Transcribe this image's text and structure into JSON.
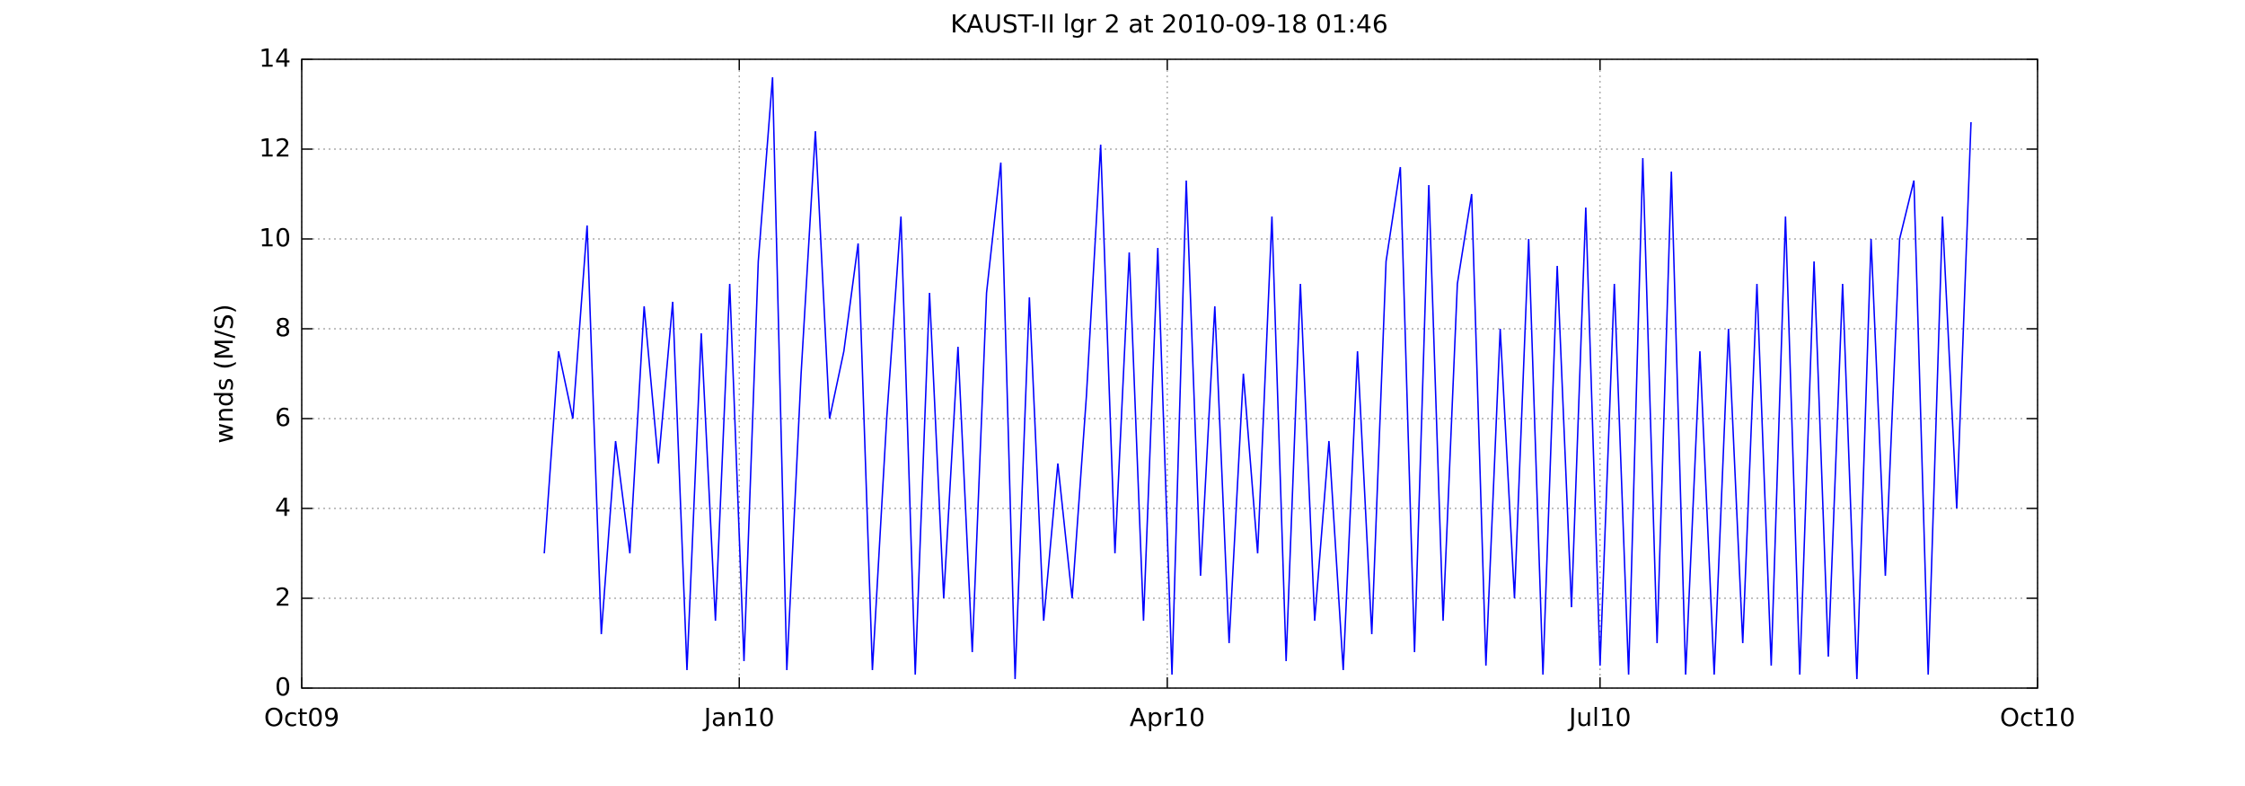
{
  "chart_data": {
    "type": "line",
    "title": "KAUST-II lgr 2 at 2010-09-18 01:46",
    "ylabel": "wnds (M/S)",
    "x": [
      51,
      54,
      57,
      60,
      63,
      66,
      69,
      72,
      75,
      78,
      81,
      84,
      87,
      90,
      93,
      96,
      99,
      102,
      105,
      108,
      111,
      114,
      117,
      120,
      123,
      126,
      129,
      132,
      135,
      138,
      141,
      144,
      147,
      150,
      153,
      156,
      159,
      162,
      165,
      168,
      171,
      174,
      177,
      180,
      183,
      186,
      189,
      192,
      195,
      198,
      201,
      204,
      207,
      210,
      213,
      216,
      219,
      222,
      225,
      228,
      231,
      234,
      237,
      240,
      243,
      246,
      249,
      252,
      255,
      258,
      261,
      264,
      267,
      270,
      273,
      276,
      279,
      282,
      285,
      288,
      291,
      294,
      297,
      300,
      303,
      306,
      309,
      312,
      315,
      318,
      321,
      324,
      327,
      330,
      333,
      336,
      339,
      342,
      345,
      348,
      351
    ],
    "series": [
      {
        "name": "wnds",
        "color": "#0000ff",
        "values": [
          3.0,
          7.5,
          6.0,
          10.3,
          1.2,
          5.5,
          3.0,
          8.5,
          5.0,
          8.6,
          0.4,
          7.9,
          1.5,
          9.0,
          0.6,
          9.5,
          13.6,
          0.4,
          7.0,
          12.4,
          6.0,
          7.5,
          9.9,
          0.4,
          6.0,
          10.5,
          0.3,
          8.8,
          2.0,
          7.6,
          0.8,
          8.8,
          11.7,
          0.2,
          8.7,
          1.5,
          5.0,
          2.0,
          6.5,
          12.1,
          3.0,
          9.7,
          1.5,
          9.8,
          0.3,
          11.3,
          2.5,
          8.5,
          1.0,
          7.0,
          3.0,
          10.5,
          0.6,
          9.0,
          1.5,
          5.5,
          0.4,
          7.5,
          1.2,
          9.5,
          11.6,
          0.8,
          11.2,
          1.5,
          9.0,
          11.0,
          0.5,
          8.0,
          2.0,
          10.0,
          0.3,
          9.4,
          1.8,
          10.7,
          0.5,
          9.0,
          0.3,
          11.8,
          1.0,
          11.5,
          0.3,
          7.5,
          0.3,
          8.0,
          1.0,
          9.0,
          0.5,
          10.5,
          0.3,
          9.5,
          0.7,
          9.0,
          0.2,
          10.0,
          2.5,
          10.0,
          11.3,
          0.3,
          10.5,
          4.0,
          12.6
        ]
      }
    ],
    "xlim": [
      0,
      365
    ],
    "xticks": [
      {
        "value": 0,
        "label": "Oct09"
      },
      {
        "value": 92,
        "label": "Jan10"
      },
      {
        "value": 182,
        "label": "Apr10"
      },
      {
        "value": 273,
        "label": "Jul10"
      },
      {
        "value": 365,
        "label": "Oct10"
      }
    ],
    "ylim": [
      0,
      14
    ],
    "yticks": [
      0,
      2,
      4,
      6,
      8,
      10,
      12,
      14
    ],
    "grid": true
  }
}
